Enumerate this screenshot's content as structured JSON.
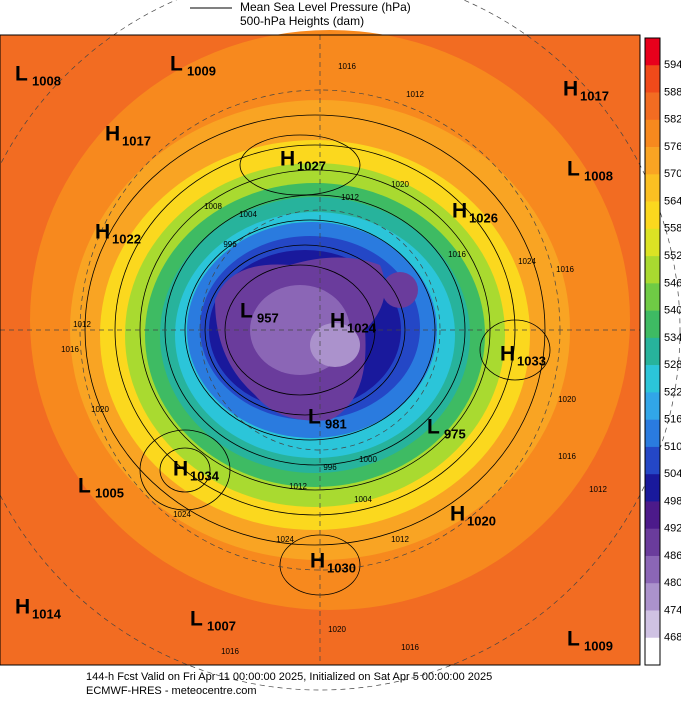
{
  "header": {
    "legend_lines": [
      "Mean Sea Level Pressure (hPa)",
      "500-hPa Heights (dam)"
    ]
  },
  "colorbar": {
    "ticks": [
      "594",
      "588",
      "582",
      "576",
      "570",
      "564",
      "558",
      "552",
      "546",
      "540",
      "534",
      "528",
      "522",
      "516",
      "510",
      "504",
      "498",
      "492",
      "486",
      "480",
      "474",
      "468"
    ],
    "colors": [
      "#e8001c",
      "#f04a1a",
      "#f26c22",
      "#f7891e",
      "#f9a423",
      "#fbc022",
      "#fbd81e",
      "#dbe324",
      "#a9da30",
      "#6fcb45",
      "#3ebb63",
      "#27b39c",
      "#2bc5d9",
      "#31a6e8",
      "#2a7bdf",
      "#2447c6",
      "#19199c",
      "#4c1a8a",
      "#6a3c9c",
      "#8b66b6",
      "#ab92cc",
      "#cfc2e3",
      "#ffffff"
    ]
  },
  "centers": [
    {
      "kind": "L",
      "value": "1008"
    },
    {
      "kind": "L",
      "value": "1009"
    },
    {
      "kind": "H",
      "value": "1017"
    },
    {
      "kind": "H",
      "value": "1017"
    },
    {
      "kind": "H",
      "value": "1027"
    },
    {
      "kind": "L",
      "value": "1008"
    },
    {
      "kind": "H",
      "value": "1026"
    },
    {
      "kind": "H",
      "value": "1022"
    },
    {
      "kind": "L",
      "value": "957"
    },
    {
      "kind": "H",
      "value": "1024"
    },
    {
      "kind": "H",
      "value": "1033"
    },
    {
      "kind": "L",
      "value": "975"
    },
    {
      "kind": "L",
      "value": "981"
    },
    {
      "kind": "H",
      "value": "1034"
    },
    {
      "kind": "L",
      "value": "1005"
    },
    {
      "kind": "H",
      "value": "1020"
    },
    {
      "kind": "H",
      "value": "1030"
    },
    {
      "kind": "H",
      "value": "1014"
    },
    {
      "kind": "L",
      "value": "1007"
    },
    {
      "kind": "L",
      "value": "1009"
    }
  ],
  "contour_labels": [
    "1016",
    "1012",
    "1020",
    "1012",
    "1008",
    "1004",
    "996",
    "1016",
    "1024",
    "1016",
    "1012",
    "1016",
    "1020",
    "1024",
    "1012",
    "996",
    "1000",
    "1004",
    "1012",
    "1024",
    "1020",
    "1016",
    "1016",
    "1016",
    "1012",
    "1020"
  ],
  "footer": {
    "line1": "144-h Fcst Valid on Fri Apr 11 00:00:00 2025, Initialized on Sat Apr  5 00:00:00 2025",
    "line2": "ECMWF-HRES - meteocentre.com"
  }
}
